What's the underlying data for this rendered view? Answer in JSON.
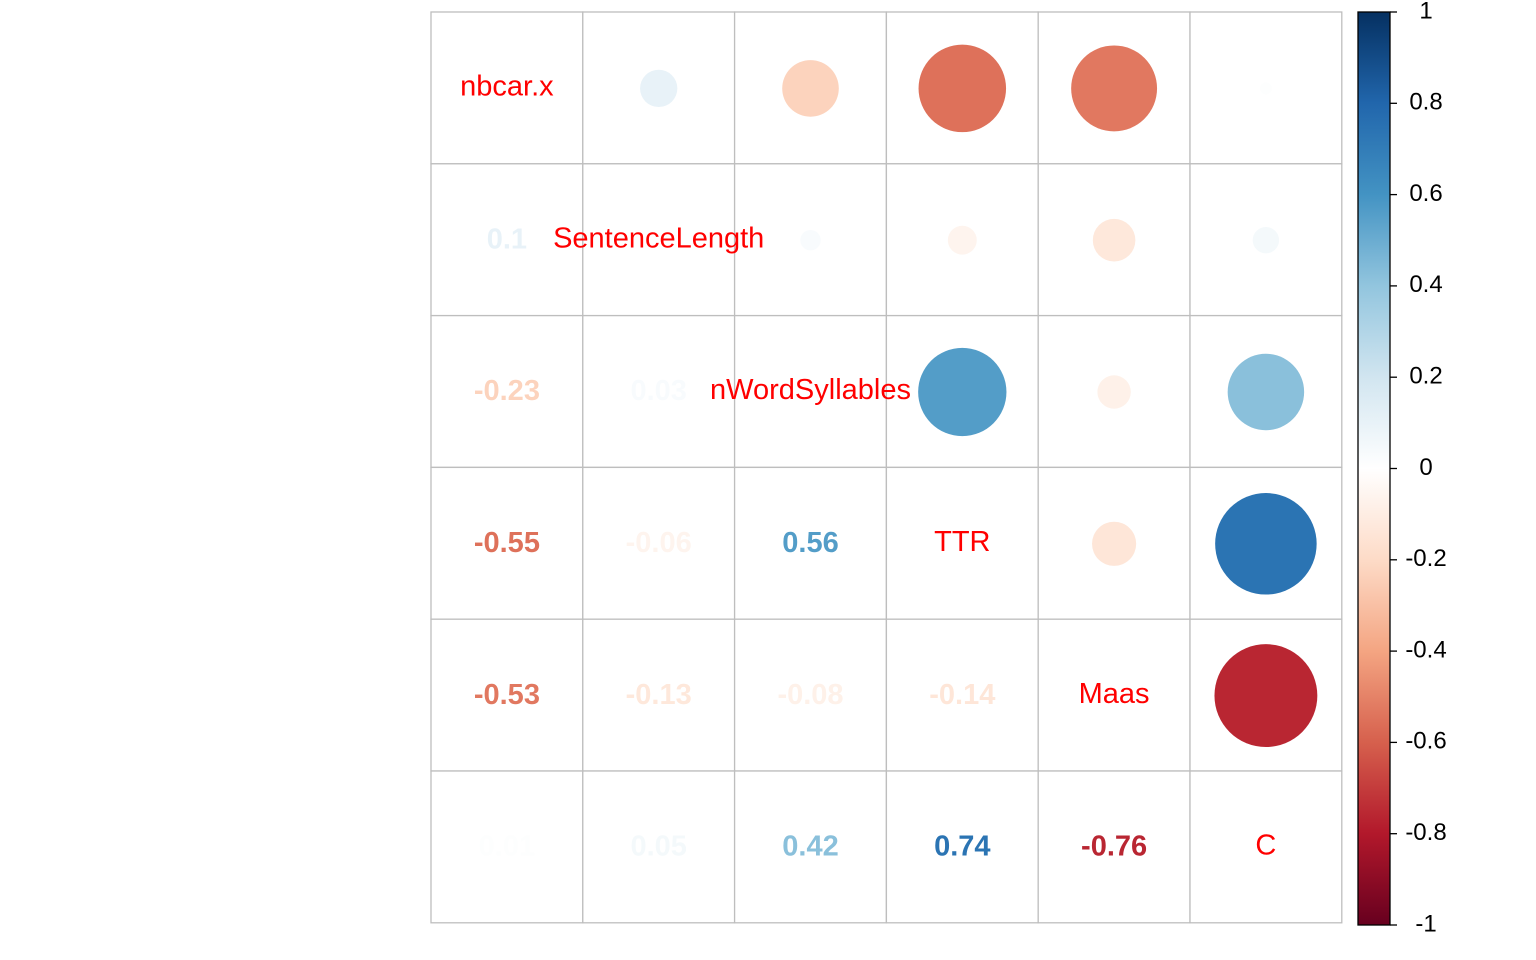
{
  "chart_data": {
    "type": "heatmap",
    "variables": [
      "nbcar.x",
      "SentenceLength",
      "nWordSyllables",
      "TTR",
      "Maas",
      "C"
    ],
    "matrix": [
      [
        1,
        0.1,
        -0.23,
        -0.55,
        -0.53,
        0.01
      ],
      [
        0.1,
        1,
        0.03,
        -0.06,
        -0.13,
        0.05
      ],
      [
        -0.23,
        0.03,
        1,
        0.56,
        -0.08,
        0.42
      ],
      [
        -0.55,
        -0.06,
        0.56,
        1,
        -0.14,
        0.74
      ],
      [
        -0.53,
        -0.13,
        -0.08,
        -0.14,
        1,
        -0.76
      ],
      [
        0.01,
        0.05,
        0.42,
        0.74,
        -0.76,
        1
      ]
    ],
    "lower_labels": [
      {
        "row": 1,
        "col": 0,
        "text": "0.1"
      },
      {
        "row": 2,
        "col": 0,
        "text": "-0.23"
      },
      {
        "row": 2,
        "col": 1,
        "text": "0.03"
      },
      {
        "row": 3,
        "col": 0,
        "text": "-0.55"
      },
      {
        "row": 3,
        "col": 1,
        "text": "-0.06"
      },
      {
        "row": 3,
        "col": 2,
        "text": "0.56"
      },
      {
        "row": 4,
        "col": 0,
        "text": "-0.53"
      },
      {
        "row": 4,
        "col": 1,
        "text": "-0.13"
      },
      {
        "row": 4,
        "col": 2,
        "text": "-0.08"
      },
      {
        "row": 4,
        "col": 3,
        "text": "-0.14"
      },
      {
        "row": 5,
        "col": 0,
        "text": "0.01"
      },
      {
        "row": 5,
        "col": 1,
        "text": "0.05"
      },
      {
        "row": 5,
        "col": 2,
        "text": "0.42"
      },
      {
        "row": 5,
        "col": 3,
        "text": "0.74"
      },
      {
        "row": 5,
        "col": 4,
        "text": "-0.76"
      }
    ],
    "upper_display": "circle",
    "lower_display": "number",
    "colorbar": {
      "range": [
        -1,
        1
      ],
      "ticks": [
        "1",
        "0.8",
        "0.6",
        "0.4",
        "0.2",
        "0",
        "-0.2",
        "-0.4",
        "-0.6",
        "-0.8",
        "-1"
      ],
      "colors": [
        "#67001F",
        "#B2182B",
        "#D6604D",
        "#F4A582",
        "#FDDBC7",
        "#FFFFFF",
        "#D1E5F0",
        "#92C5DE",
        "#4393C3",
        "#2166AC",
        "#053061"
      ]
    },
    "diagonal_label_color": "#FF0000",
    "grid_color": "#BEBEBE"
  }
}
